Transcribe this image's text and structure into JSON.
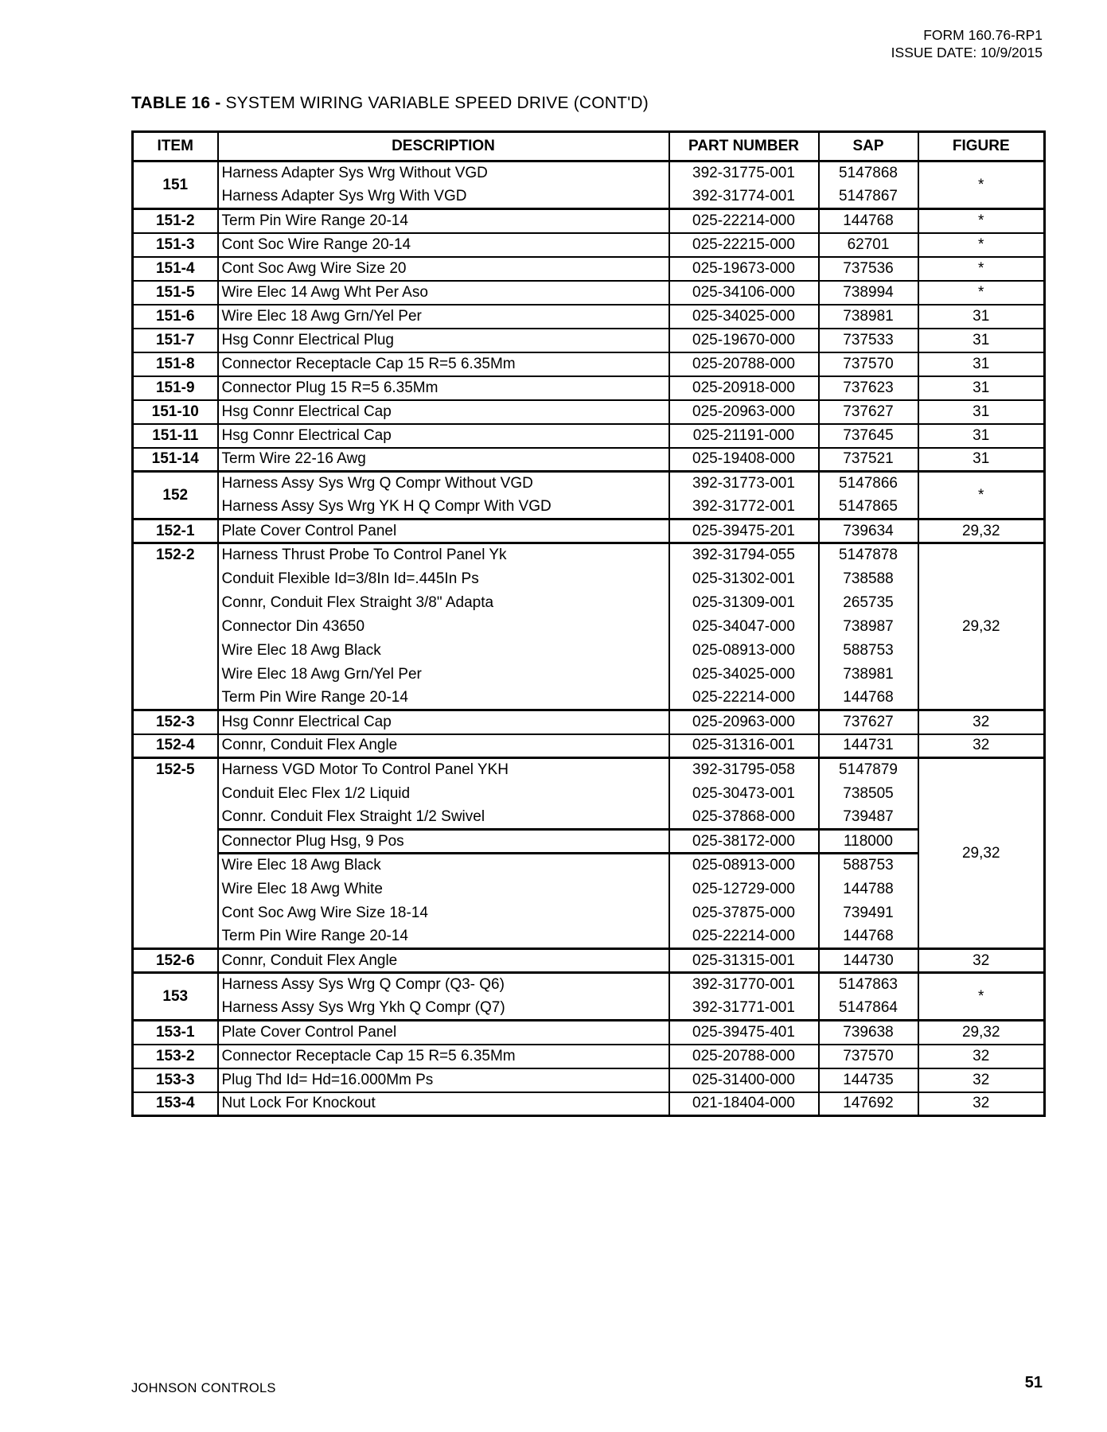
{
  "page": {
    "header_line1": "FORM 160.76-RP1",
    "header_line2": "ISSUE DATE: 10/9/2015",
    "footer_left": "JOHNSON CONTROLS",
    "footer_page": "51"
  },
  "table": {
    "title_bold": "TABLE 16 -",
    "title_rest": " SYSTEM WIRING VARIABLE SPEED DRIVE (CONT'D)",
    "columns": [
      "ITEM",
      "DESCRIPTION",
      "PART NUMBER",
      "SAP",
      "FIGURE"
    ],
    "groups": [
      {
        "item": "151",
        "figure": "*",
        "merge_item": true,
        "rows": [
          {
            "desc": "Harness Adapter Sys Wrg Without VGD",
            "part": "392-31775-001",
            "sap": "5147868"
          },
          {
            "desc": "Harness Adapter Sys Wrg With VGD",
            "part": "392-31774-001",
            "sap": "5147867"
          }
        ]
      },
      {
        "item": "151-2",
        "figure": "*",
        "rows": [
          {
            "desc": "Term Pin Wire Range 20-14",
            "part": "025-22214-000",
            "sap": "144768"
          }
        ]
      },
      {
        "item": "151-3",
        "figure": "*",
        "rows": [
          {
            "desc": "Cont Soc Wire Range 20-14",
            "part": "025-22215-000",
            "sap": "62701"
          }
        ]
      },
      {
        "item": "151-4",
        "figure": "*",
        "rows": [
          {
            "desc": "Cont Soc Awg Wire Size 20",
            "part": "025-19673-000",
            "sap": "737536"
          }
        ]
      },
      {
        "item": "151-5",
        "figure": "*",
        "rows": [
          {
            "desc": "Wire Elec 14 Awg Wht Per Aso",
            "part": "025-34106-000",
            "sap": "738994"
          }
        ]
      },
      {
        "item": "151-6",
        "figure": "31",
        "rows": [
          {
            "desc": "Wire Elec 18 Awg Grn/Yel Per",
            "part": "025-34025-000",
            "sap": "738981"
          }
        ]
      },
      {
        "item": "151-7",
        "figure": "31",
        "rows": [
          {
            "desc": "Hsg Connr Electrical Plug",
            "part": "025-19670-000",
            "sap": "737533"
          }
        ]
      },
      {
        "item": "151-8",
        "figure": "31",
        "rows": [
          {
            "desc": "Connector Receptacle Cap 15 R=5 6.35Mm",
            "part": "025-20788-000",
            "sap": "737570"
          }
        ]
      },
      {
        "item": "151-9",
        "figure": "31",
        "rows": [
          {
            "desc": "Connector Plug 15 R=5 6.35Mm",
            "part": "025-20918-000",
            "sap": "737623"
          }
        ]
      },
      {
        "item": "151-10",
        "figure": "31",
        "rows": [
          {
            "desc": "Hsg Connr Electrical Cap",
            "part": "025-20963-000",
            "sap": "737627"
          }
        ]
      },
      {
        "item": "151-11",
        "figure": "31",
        "rows": [
          {
            "desc": "Hsg Connr Electrical Cap",
            "part": "025-21191-000",
            "sap": "737645"
          }
        ]
      },
      {
        "item": "151-14",
        "figure": "31",
        "rows": [
          {
            "desc": "Term Wire 22-16 Awg",
            "part": "025-19408-000",
            "sap": "737521"
          }
        ]
      },
      {
        "item": "152",
        "figure": "*",
        "merge_item": true,
        "rows": [
          {
            "desc": "Harness Assy Sys Wrg Q Compr Without VGD",
            "part": "392-31773-001",
            "sap": "5147866"
          },
          {
            "desc": "Harness Assy Sys Wrg YK H Q Compr With VGD",
            "part": "392-31772-001",
            "sap": "5147865"
          }
        ]
      },
      {
        "item": "152-1",
        "figure": "29,32",
        "rows": [
          {
            "desc": "Plate Cover Control Panel",
            "part": "025-39475-201",
            "sap": "739634"
          }
        ]
      },
      {
        "item": "152-2",
        "figure": "29,32",
        "rows": [
          {
            "desc": "Harness Thrust Probe To Control Panel Yk",
            "part": "392-31794-055",
            "sap": "5147878"
          },
          {
            "desc": "Conduit Flexible Id=3/8In Id=.445In Ps",
            "part": "025-31302-001",
            "sap": "738588"
          },
          {
            "desc": "Connr, Conduit Flex Straight 3/8\" Adapta",
            "part": "025-31309-001",
            "sap": "265735"
          },
          {
            "desc": "Connector Din 43650",
            "part": "025-34047-000",
            "sap": "738987"
          },
          {
            "desc": "Wire Elec 18 Awg Black",
            "part": "025-08913-000",
            "sap": "588753"
          },
          {
            "desc": "Wire Elec 18 Awg Grn/Yel Per",
            "part": "025-34025-000",
            "sap": "738981"
          },
          {
            "desc": "Term Pin Wire Range 20-14",
            "part": "025-22214-000",
            "sap": "144768"
          }
        ]
      },
      {
        "item": "152-3",
        "figure": "32",
        "rows": [
          {
            "desc": "Hsg Connr Electrical Cap",
            "part": "025-20963-000",
            "sap": "737627"
          }
        ]
      },
      {
        "item": "152-4",
        "figure": "32",
        "rows": [
          {
            "desc": "Connr, Conduit Flex Angle",
            "part": "025-31316-001",
            "sap": "144731"
          }
        ]
      },
      {
        "item": "152-5",
        "figure": "29,32",
        "rows": [
          {
            "desc": "Harness VGD Motor To Control Panel YKH",
            "part": "392-31795-058",
            "sap": "5147879"
          },
          {
            "desc": "Conduit Elec Flex 1/2 Liquid",
            "part": "025-30473-001",
            "sap": "738505"
          },
          {
            "desc": "Connr. Conduit Flex Straight 1/2 Swivel",
            "part": "025-37868-000",
            "sap": "739487"
          },
          {
            "desc": "Connector Plug Hsg, 9 Pos",
            "part": "025-38172-000",
            "sap": "118000",
            "thick_top": true
          },
          {
            "desc": "Wire Elec 18 Awg Black",
            "part": "025-08913-000",
            "sap": "588753",
            "thick_top": true
          },
          {
            "desc": "Wire Elec 18 Awg White",
            "part": "025-12729-000",
            "sap": "144788"
          },
          {
            "desc": "Cont Soc Awg Wire Size 18-14",
            "part": "025-37875-000",
            "sap": "739491"
          },
          {
            "desc": "Term Pin Wire Range 20-14",
            "part": "025-22214-000",
            "sap": "144768"
          }
        ]
      },
      {
        "item": "152-6",
        "figure": "32",
        "rows": [
          {
            "desc": "Connr, Conduit Flex Angle",
            "part": "025-31315-001",
            "sap": "144730"
          }
        ]
      },
      {
        "item": "153",
        "figure": "*",
        "merge_item": true,
        "rows": [
          {
            "desc": "Harness Assy Sys Wrg Q Compr (Q3- Q6)",
            "part": "392-31770-001",
            "sap": "5147863"
          },
          {
            "desc": "Harness Assy Sys Wrg Ykh Q Compr (Q7)",
            "part": "392-31771-001",
            "sap": "5147864"
          }
        ]
      },
      {
        "item": "153-1",
        "figure": "29,32",
        "rows": [
          {
            "desc": "Plate Cover Control Panel",
            "part": "025-39475-401",
            "sap": "739638"
          }
        ]
      },
      {
        "item": "153-2",
        "figure": "32",
        "rows": [
          {
            "desc": "Connector Receptacle Cap 15 R=5 6.35Mm",
            "part": "025-20788-000",
            "sap": "737570"
          }
        ]
      },
      {
        "item": "153-3",
        "figure": "32",
        "rows": [
          {
            "desc": "Plug Thd Id= Hd=16.000Mm Ps",
            "part": "025-31400-000",
            "sap": "144735"
          }
        ]
      },
      {
        "item": "153-4",
        "figure": "32",
        "rows": [
          {
            "desc": "Nut Lock For Knockout",
            "part": "021-18404-000",
            "sap": "147692"
          }
        ]
      }
    ]
  }
}
